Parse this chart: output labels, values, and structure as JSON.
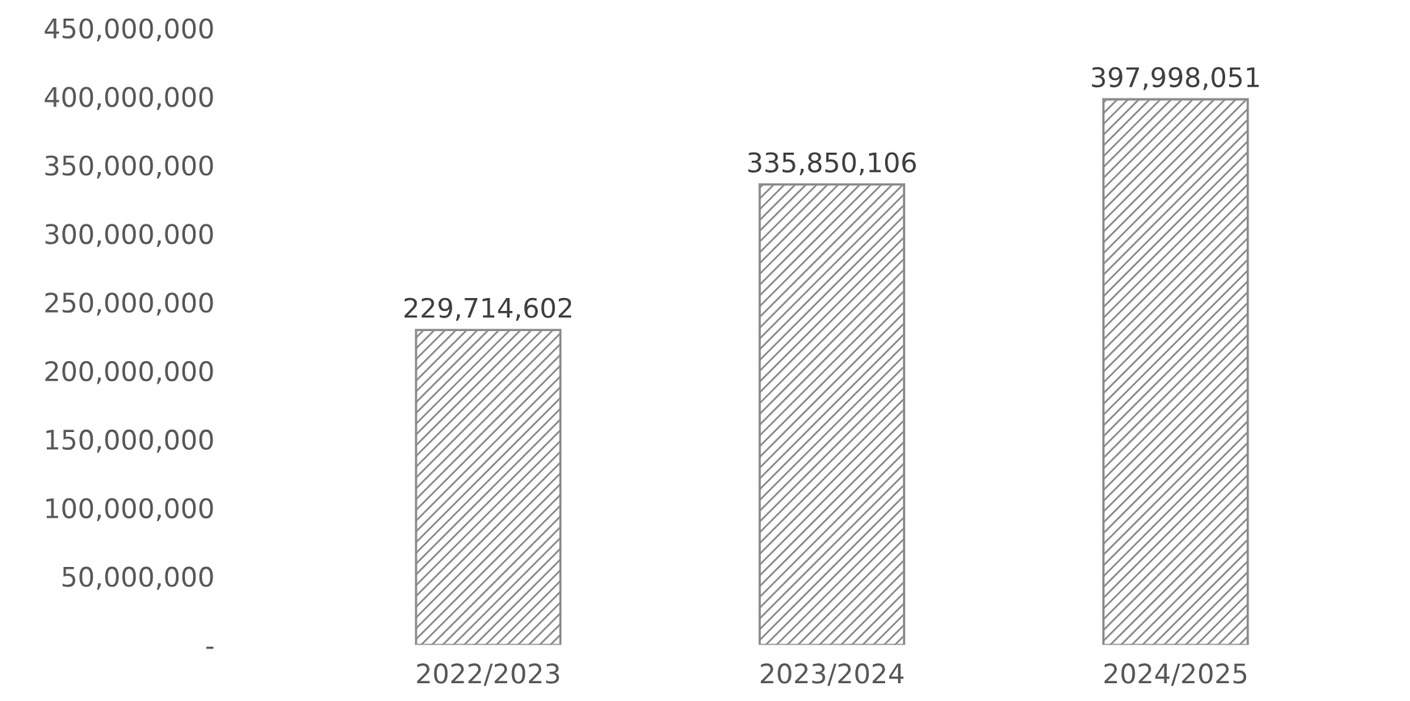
{
  "chart_data": {
    "type": "bar",
    "categories": [
      "2022/2023",
      "2023/2024",
      "2024/2025"
    ],
    "values": [
      229714602,
      335850106,
      397998051
    ],
    "value_labels": [
      "229,714,602",
      "335,850,106",
      "397,998,051"
    ],
    "color": "#8c8c8c",
    "ylim": [
      0,
      450000000
    ],
    "yticks": [
      {
        "value": 0,
        "label": "-"
      },
      {
        "value": 50000000,
        "label": "50,000,000"
      },
      {
        "value": 100000000,
        "label": "100,000,000"
      },
      {
        "value": 150000000,
        "label": "150,000,000"
      },
      {
        "value": 200000000,
        "label": "200,000,000"
      },
      {
        "value": 250000000,
        "label": "250,000,000"
      },
      {
        "value": 300000000,
        "label": "300,000,000"
      },
      {
        "value": 350000000,
        "label": "350,000,000"
      },
      {
        "value": 400000000,
        "label": "400,000,000"
      },
      {
        "value": 450000000,
        "label": "450,000,000"
      }
    ],
    "grid": false,
    "legend": false
  }
}
